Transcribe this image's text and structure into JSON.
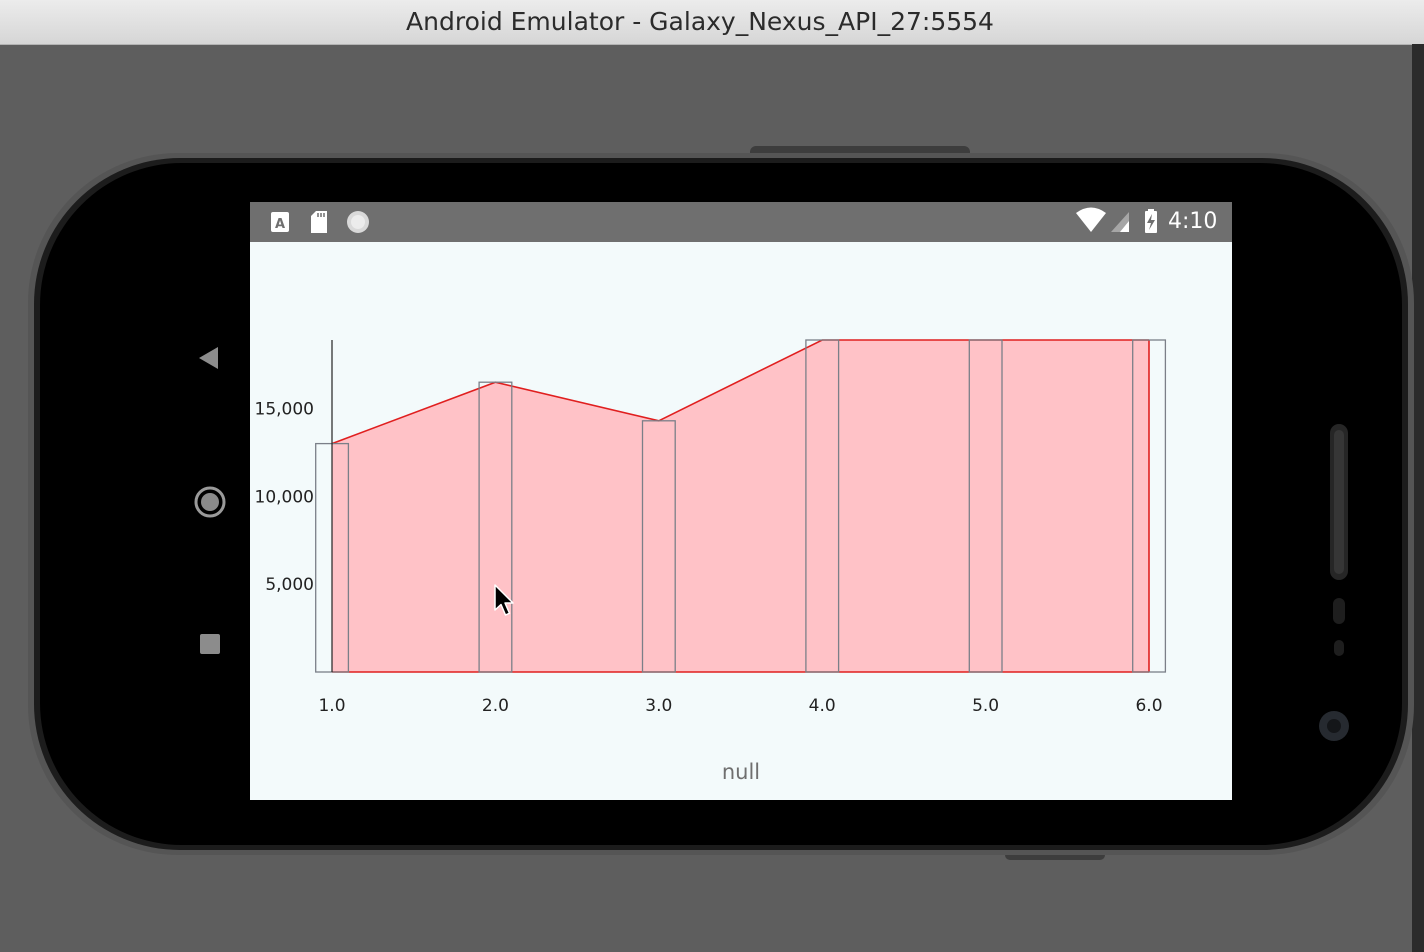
{
  "window": {
    "title": "Android Emulator - Galaxy_Nexus_API_27:5554"
  },
  "status_bar": {
    "time": "4:10",
    "left_icons": [
      "app-notification-icon",
      "sd-card-icon",
      "sync-icon"
    ],
    "right_icons": [
      "wifi-icon",
      "signal-icon",
      "battery-charging-icon"
    ],
    "color": "#6f6f6f"
  },
  "nav_buttons": [
    "back-icon",
    "home-icon",
    "recents-icon"
  ],
  "chart_data": {
    "type": "combined",
    "x": [
      1.0,
      2.0,
      3.0,
      4.0,
      5.0,
      6.0
    ],
    "x_tick_labels": [
      "1.0",
      "2.0",
      "3.0",
      "4.0",
      "5.0",
      "6.0"
    ],
    "y_tick_labels": [
      "5,000",
      "10,000",
      "15,000"
    ],
    "y_ticks": [
      5000,
      10000,
      15000
    ],
    "ylim": [
      0,
      18900
    ],
    "xlim": [
      1.0,
      6.0
    ],
    "description": "null",
    "series": [
      {
        "type": "area",
        "values": [
          13000,
          16500,
          14300,
          18900,
          18900,
          18900
        ],
        "line_color": "#e01f1f",
        "fill_color": "#ffc2c7"
      },
      {
        "type": "bar",
        "values": [
          13000,
          16500,
          14300,
          18900,
          18900,
          18900
        ],
        "bar_width": 0.2,
        "stroke_color": "#7b7f88"
      }
    ]
  }
}
